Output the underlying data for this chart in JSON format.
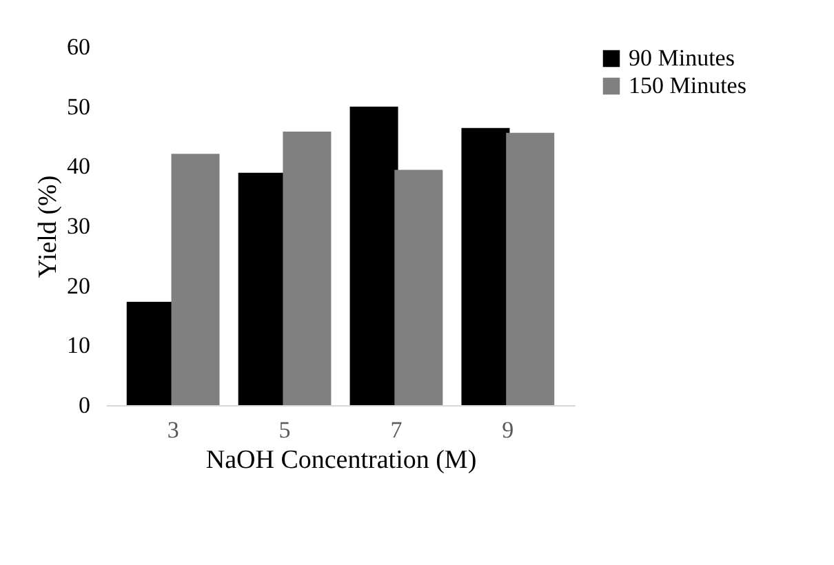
{
  "chart_data": {
    "type": "bar",
    "xlabel": "NaOH Concentration (M)",
    "ylabel": "Yield (%)",
    "categories": [
      "3",
      "5",
      "7",
      "9"
    ],
    "series": [
      {
        "name": "90 Minutes",
        "color": "#000000",
        "values": [
          17.3,
          38.9,
          50.0,
          46.4
        ]
      },
      {
        "name": "150 Minutes",
        "color": "#808080",
        "values": [
          42.1,
          45.8,
          39.4,
          45.6
        ]
      }
    ],
    "ylim": [
      0,
      60
    ],
    "yticks": [
      0,
      10,
      20,
      30,
      40,
      50,
      60
    ],
    "grid": false,
    "legend": "right"
  }
}
